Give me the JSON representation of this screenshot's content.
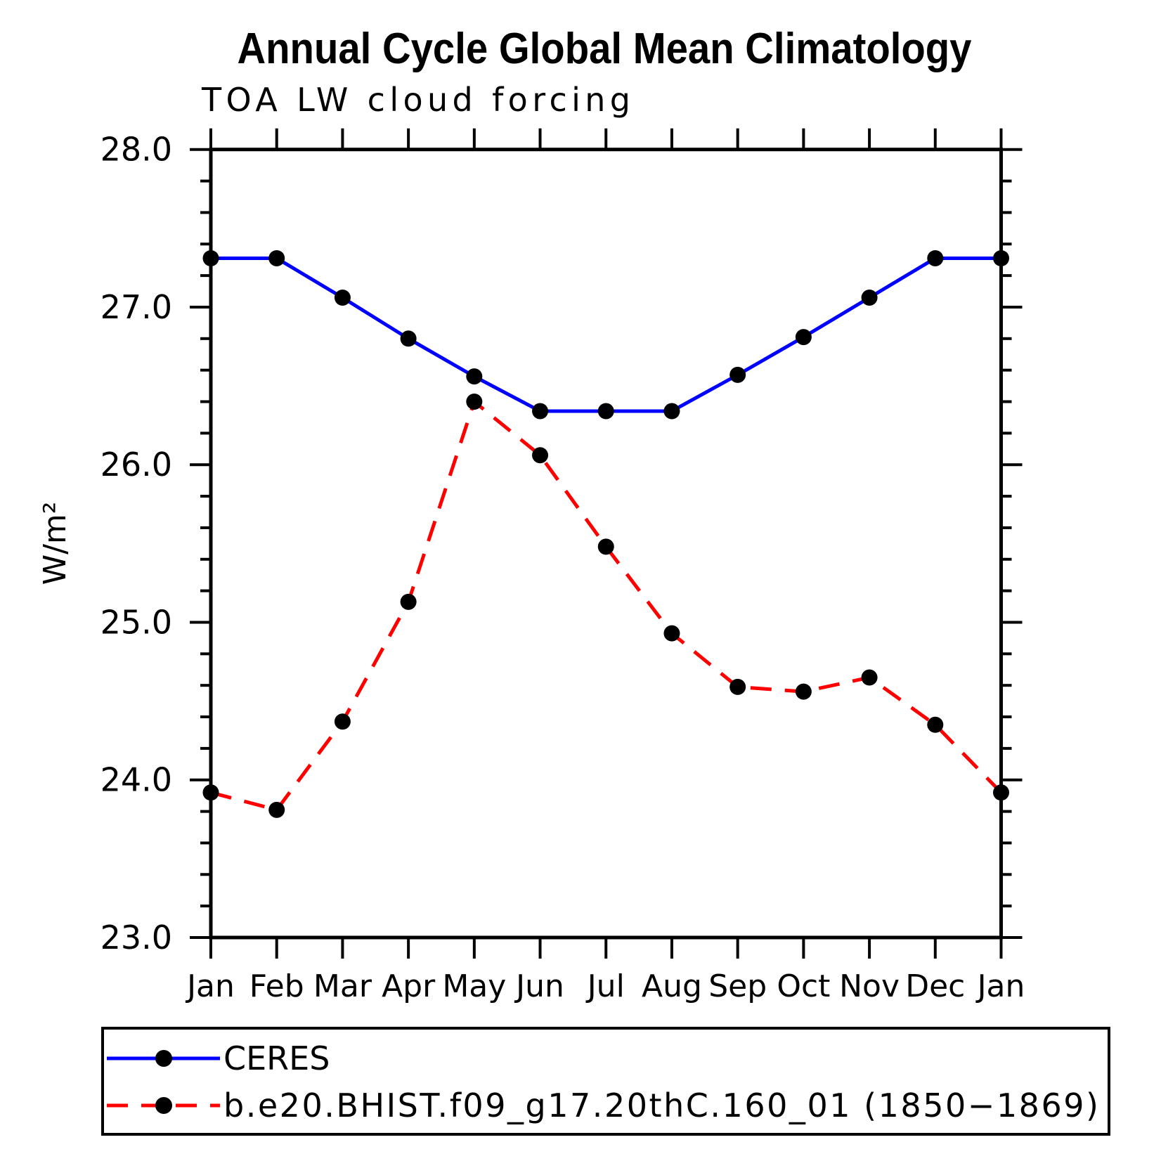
{
  "page": {
    "title": "Annual Cycle Global Mean Climatology",
    "subtitle": "TOA LW cloud forcing"
  },
  "chart_data": {
    "type": "line",
    "title": "Annual Cycle Global Mean Climatology",
    "subtitle": "TOA LW cloud forcing",
    "xlabel": "",
    "ylabel": "W/m²",
    "categories": [
      "Jan",
      "Feb",
      "Mar",
      "Apr",
      "May",
      "Jun",
      "Jul",
      "Aug",
      "Sep",
      "Oct",
      "Nov",
      "Dec",
      "Jan"
    ],
    "ylim": [
      23.0,
      28.0
    ],
    "ytick_interval": 1.0,
    "yminor_interval": 0.2,
    "ytick_decimals": 1,
    "grid": false,
    "legend_position": "bottom-left-box",
    "series": [
      {
        "name": "CERES",
        "color": "#0000ff",
        "line_style": "solid",
        "marker": "filled-circle",
        "marker_color": "#000000",
        "values": [
          27.31,
          27.31,
          27.06,
          26.8,
          26.56,
          26.34,
          26.34,
          26.34,
          26.57,
          26.81,
          27.06,
          27.31,
          27.31
        ]
      },
      {
        "name": "b.e20.BHIST.f09_g17.20thC.160_01 (1850−1869)",
        "color": "#ff0000",
        "line_style": "dashed",
        "marker": "filled-circle",
        "marker_color": "#000000",
        "values": [
          23.92,
          23.81,
          24.37,
          25.13,
          26.4,
          26.06,
          25.48,
          24.93,
          24.59,
          24.56,
          24.65,
          24.35,
          23.92
        ]
      }
    ]
  }
}
